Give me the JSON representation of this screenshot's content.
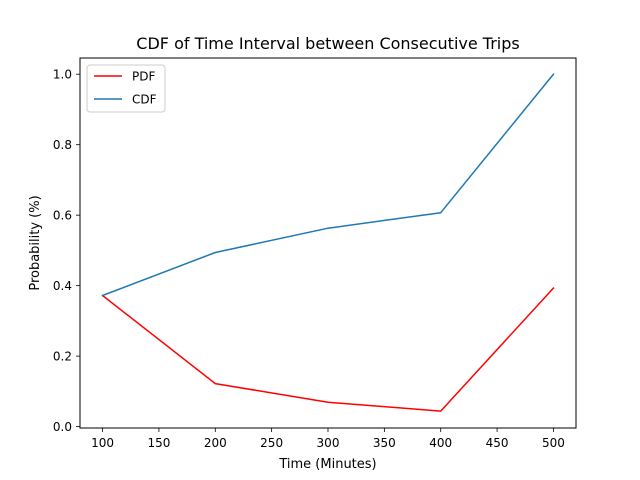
{
  "chart_data": {
    "type": "line",
    "title": "CDF of Time Interval between Consecutive Trips",
    "xlabel": "Time (Minutes)",
    "ylabel": "Probability (%)",
    "x": [
      100,
      200,
      300,
      400,
      500
    ],
    "xlim": [
      80,
      520
    ],
    "ylim": [
      -0.004,
      1.046
    ],
    "xticks": [
      100,
      150,
      200,
      250,
      300,
      350,
      400,
      450,
      500
    ],
    "yticks": [
      0.0,
      0.2,
      0.4,
      0.6,
      0.8,
      1.0
    ],
    "ytick_labels": [
      "0.0",
      "0.2",
      "0.4",
      "0.6",
      "0.8",
      "1.0"
    ],
    "grid": false,
    "legend_position": "top-left",
    "series": [
      {
        "name": "PDF",
        "color": "#ff0000",
        "values": [
          0.372,
          0.122,
          0.069,
          0.044,
          0.393
        ]
      },
      {
        "name": "CDF",
        "color": "#1f77b4",
        "values": [
          0.372,
          0.494,
          0.563,
          0.607,
          1.0
        ]
      }
    ]
  }
}
